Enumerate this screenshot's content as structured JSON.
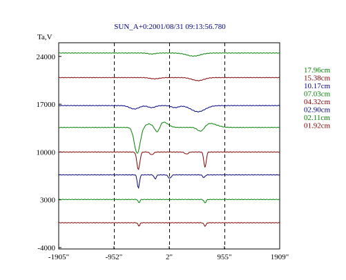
{
  "chart_data": {
    "type": "line",
    "title": "SUN_A+0:2001/08/31 09:13:56.780",
    "ylabel": "Ta,V",
    "xlabel": "",
    "x_ticks": [
      {
        "label": "-1905\"",
        "value": -1905
      },
      {
        "label": "-952\"",
        "value": -952
      },
      {
        "label": "2\"",
        "value": 2
      },
      {
        "label": "955\"",
        "value": 955
      },
      {
        "label": "1909\"",
        "value": 1909
      }
    ],
    "y_ticks": [
      {
        "label": "24000",
        "value": 24000
      },
      {
        "label": "17000",
        "value": 17000
      },
      {
        "label": "10000",
        "value": 10000
      },
      {
        "label": "3000",
        "value": 3000
      },
      {
        "label": "-4000",
        "value": -4000
      }
    ],
    "xlim": [
      -1905,
      1909
    ],
    "ylim": [
      -4200,
      26000
    ],
    "grid": "vertical dashed lines at -952\", 2\", 955\"",
    "legend_position": "right",
    "series": [
      {
        "name": "17.96cm",
        "color": "#008000",
        "baseline": 24500,
        "dips": [
          [
            -300,
            60,
            150
          ],
          [
            420,
            120,
            450
          ]
        ]
      },
      {
        "name": "15.38cm",
        "color": "#800000",
        "baseline": 20900,
        "dips": [
          [
            -250,
            80,
            180
          ],
          [
            500,
            100,
            450
          ]
        ]
      },
      {
        "name": "10.17cm",
        "color": "#000080",
        "baseline": 16800,
        "dips": [
          [
            -600,
            80,
            500
          ],
          [
            -300,
            60,
            300
          ],
          [
            500,
            120,
            900
          ],
          [
            100,
            60,
            300
          ]
        ]
      },
      {
        "name": "07.03cm",
        "color": "#008000",
        "baseline": 13600,
        "dips": [
          [
            -550,
            50,
            3800
          ],
          [
            -200,
            40,
            1000
          ],
          [
            550,
            60,
            800
          ],
          [
            -100,
            80,
            -800
          ],
          [
            700,
            120,
            -600
          ],
          [
            -350,
            60,
            -500
          ]
        ]
      },
      {
        "name": "04.32cm",
        "color": "#800000",
        "baseline": 10000,
        "dips": [
          [
            -530,
            25,
            2600
          ],
          [
            620,
            20,
            2300
          ],
          [
            -300,
            30,
            400
          ],
          [
            300,
            30,
            300
          ]
        ]
      },
      {
        "name": "02.90cm",
        "color": "#000080",
        "baseline": 6650,
        "dips": [
          [
            -530,
            18,
            2000
          ],
          [
            -240,
            18,
            600
          ],
          [
            10,
            25,
            500
          ],
          [
            600,
            20,
            400
          ]
        ]
      },
      {
        "name": "02.11cm",
        "color": "#008000",
        "baseline": 3050,
        "dips": [
          [
            -520,
            15,
            500
          ],
          [
            620,
            18,
            500
          ]
        ]
      },
      {
        "name": "01.92cm",
        "color": "#800000",
        "baseline": -360,
        "dips": [
          [
            -520,
            15,
            500
          ],
          [
            620,
            18,
            500
          ]
        ]
      }
    ]
  }
}
